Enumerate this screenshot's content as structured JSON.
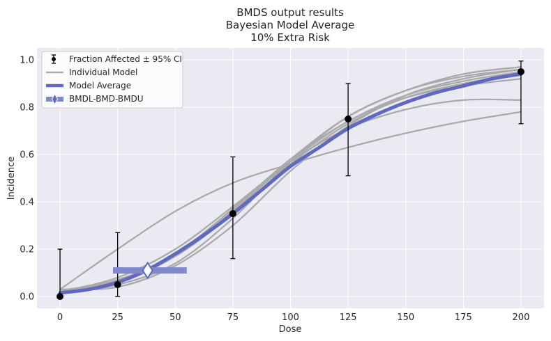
{
  "chart_data": {
    "type": "line",
    "title_lines": [
      "BMDS output results",
      "Bayesian Model Average",
      "10% Extra Risk"
    ],
    "xlabel": "Dose",
    "ylabel": "Incidence",
    "xlim": [
      -10,
      210
    ],
    "ylim": [
      -0.05,
      1.05
    ],
    "xticks": [
      0,
      25,
      50,
      75,
      100,
      125,
      150,
      175,
      200
    ],
    "yticks": [
      0.0,
      0.2,
      0.4,
      0.6,
      0.8,
      1.0
    ],
    "xtick_labels": [
      "0",
      "25",
      "50",
      "75",
      "100",
      "125",
      "150",
      "175",
      "200"
    ],
    "ytick_labels": [
      "0.0",
      "0.2",
      "0.4",
      "0.6",
      "0.8",
      "1.0"
    ],
    "grid": true,
    "legend_position": "top-left",
    "legend": {
      "observed": "Fraction Affected ± 95% CI",
      "individual": "Individual Model",
      "average": "Model Average",
      "bmd": "BMDL-BMD-BMDU"
    },
    "observed": [
      {
        "dose": 0,
        "y": 0.0,
        "lower": 0.0,
        "upper": 0.2
      },
      {
        "dose": 25,
        "y": 0.05,
        "lower": 0.0,
        "upper": 0.27
      },
      {
        "dose": 75,
        "y": 0.35,
        "lower": 0.16,
        "upper": 0.59
      },
      {
        "dose": 125,
        "y": 0.75,
        "lower": 0.51,
        "upper": 0.9
      },
      {
        "dose": 200,
        "y": 0.95,
        "lower": 0.73,
        "upper": 0.995
      }
    ],
    "individual_models": [
      {
        "x": [
          0,
          25,
          50,
          75,
          100,
          125,
          150,
          175,
          200
        ],
        "y": [
          0.02,
          0.05,
          0.14,
          0.33,
          0.57,
          0.76,
          0.87,
          0.93,
          0.96
        ]
      },
      {
        "x": [
          0,
          25,
          50,
          75,
          100,
          125,
          150,
          175,
          200
        ],
        "y": [
          0.015,
          0.06,
          0.17,
          0.36,
          0.57,
          0.74,
          0.84,
          0.89,
          0.92
        ]
      },
      {
        "x": [
          0,
          25,
          50,
          75,
          100,
          125,
          150,
          175,
          200
        ],
        "y": [
          0.02,
          0.07,
          0.18,
          0.37,
          0.58,
          0.74,
          0.85,
          0.91,
          0.95
        ]
      },
      {
        "x": [
          0,
          25,
          50,
          75,
          100,
          125,
          150,
          175,
          200
        ],
        "y": [
          0.03,
          0.04,
          0.13,
          0.3,
          0.53,
          0.72,
          0.85,
          0.92,
          0.96
        ]
      },
      {
        "x": [
          0,
          25,
          50,
          75,
          100,
          125,
          150,
          175,
          200
        ],
        "y": [
          0.025,
          0.07,
          0.18,
          0.37,
          0.58,
          0.76,
          0.87,
          0.94,
          0.97
        ]
      },
      {
        "x": [
          0,
          25,
          50,
          75,
          100,
          125,
          150,
          175,
          200
        ],
        "y": [
          0.02,
          0.08,
          0.2,
          0.38,
          0.57,
          0.71,
          0.79,
          0.83,
          0.83
        ]
      },
      {
        "x": [
          0,
          25,
          50,
          75,
          100,
          125,
          150,
          175,
          200
        ],
        "y": [
          0.03,
          0.2,
          0.36,
          0.48,
          0.56,
          0.63,
          0.69,
          0.74,
          0.78
        ]
      },
      {
        "x": [
          0,
          25,
          50,
          75,
          100,
          125,
          150,
          175,
          200
        ],
        "y": [
          0.02,
          0.07,
          0.17,
          0.35,
          0.56,
          0.73,
          0.84,
          0.9,
          0.94
        ]
      }
    ],
    "model_average": {
      "x": [
        0,
        12.5,
        25,
        37.5,
        50,
        62.5,
        75,
        87.5,
        100,
        112.5,
        125,
        137.5,
        150,
        162.5,
        175,
        187.5,
        200
      ],
      "y": [
        0.015,
        0.03,
        0.06,
        0.11,
        0.18,
        0.26,
        0.35,
        0.45,
        0.55,
        0.63,
        0.71,
        0.77,
        0.82,
        0.86,
        0.89,
        0.92,
        0.94
      ]
    },
    "bmd": {
      "bmdl": 23,
      "bmd": 38,
      "bmdu": 55,
      "response": 0.11
    },
    "colors": {
      "background": "#eaeaf2",
      "grid": "#ffffff",
      "individual": "#aaaaaa",
      "average": "#6068c0",
      "bmd_bar": "#8088cc",
      "observed": "#000000"
    }
  }
}
